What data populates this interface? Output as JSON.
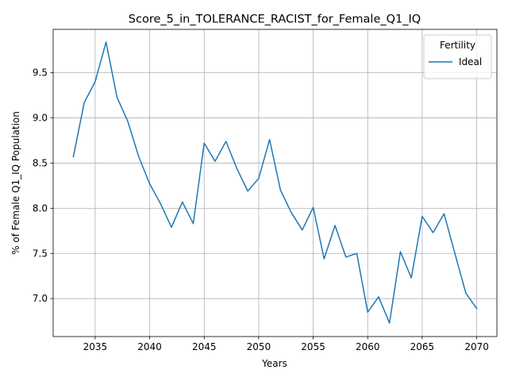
{
  "chart_data": {
    "type": "line",
    "title": "Score_5_in_TOLERANCE_RACIST_for_Female_Q1_IQ",
    "xlabel": "Years",
    "ylabel": "% of Female Q1_IQ Population",
    "xlim": [
      2031.15,
      2071.85
    ],
    "ylim": [
      6.58,
      9.98
    ],
    "xticks": [
      2035,
      2040,
      2045,
      2050,
      2055,
      2060,
      2065,
      2070
    ],
    "yticks": [
      7.0,
      7.5,
      8.0,
      8.5,
      9.0,
      9.5
    ],
    "ytick_labels": [
      "7.0",
      "7.5",
      "8.0",
      "8.5",
      "9.0",
      "9.5"
    ],
    "grid": true,
    "legend": {
      "title": "Fertility",
      "placement": "upper right"
    },
    "x": [
      2033,
      2034,
      2035,
      2036,
      2037,
      2038,
      2039,
      2040,
      2041,
      2042,
      2043,
      2044,
      2045,
      2046,
      2047,
      2048,
      2049,
      2050,
      2051,
      2052,
      2053,
      2054,
      2055,
      2056,
      2057,
      2058,
      2059,
      2060,
      2061,
      2062,
      2063,
      2064,
      2065,
      2066,
      2067,
      2068,
      2069,
      2070
    ],
    "series": [
      {
        "name": "Ideal",
        "color": "#1f77b4",
        "values": [
          8.57,
          9.17,
          9.4,
          9.84,
          9.23,
          8.96,
          8.57,
          8.27,
          8.05,
          7.79,
          8.07,
          7.83,
          8.72,
          8.52,
          8.74,
          8.44,
          8.19,
          8.33,
          8.76,
          8.2,
          7.95,
          7.76,
          8.01,
          7.44,
          7.81,
          7.46,
          7.5,
          6.85,
          7.02,
          6.73,
          7.52,
          7.23,
          7.91,
          7.73,
          7.94,
          7.5,
          7.06,
          6.89
        ]
      }
    ]
  }
}
